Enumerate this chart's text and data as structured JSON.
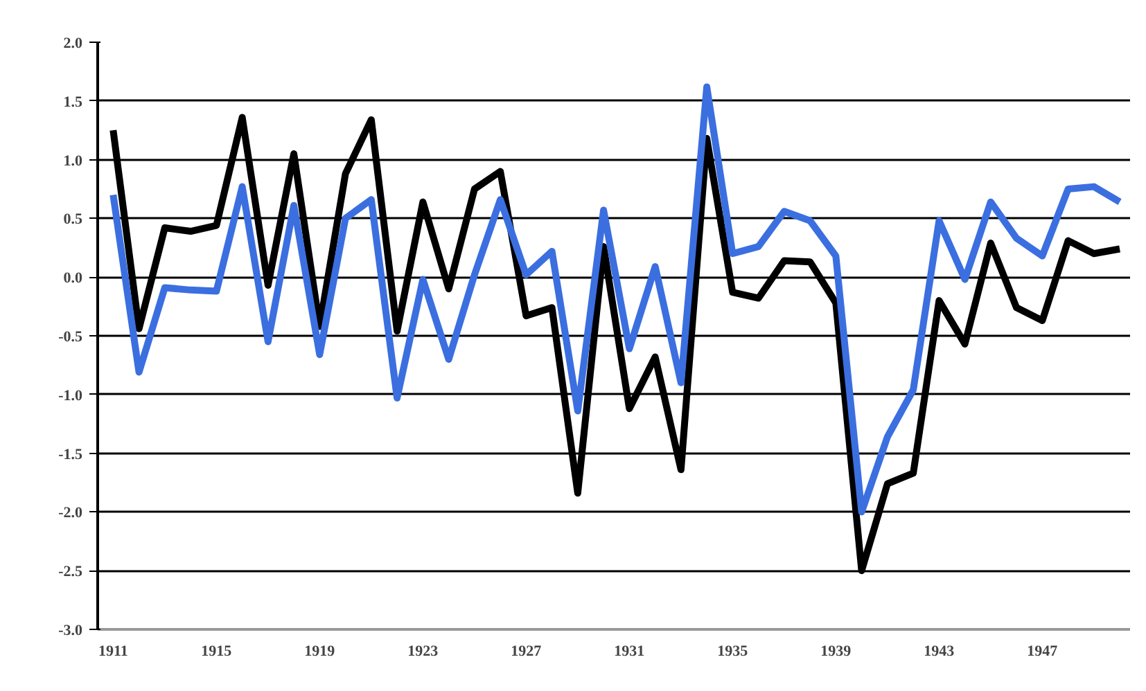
{
  "chart_data": {
    "type": "line",
    "x": [
      1911,
      1912,
      1913,
      1914,
      1915,
      1916,
      1917,
      1918,
      1919,
      1920,
      1921,
      1922,
      1923,
      1924,
      1925,
      1926,
      1927,
      1928,
      1929,
      1930,
      1931,
      1932,
      1933,
      1934,
      1935,
      1936,
      1937,
      1938,
      1939,
      1940,
      1941,
      1942,
      1943,
      1944,
      1945,
      1946,
      1947,
      1948,
      1949,
      1950
    ],
    "series": [
      {
        "color": "#000000",
        "values": [
          1.25,
          -0.44,
          0.42,
          0.39,
          0.44,
          1.36,
          -0.07,
          1.05,
          -0.42,
          0.88,
          1.34,
          -0.46,
          0.64,
          -0.1,
          0.75,
          0.9,
          -0.33,
          -0.26,
          -1.84,
          0.26,
          -1.12,
          -0.68,
          -1.64,
          1.18,
          -0.13,
          -0.18,
          0.14,
          0.13,
          -0.22,
          -2.5,
          -1.76,
          -1.67,
          -0.2,
          -0.57,
          0.29,
          -0.26,
          -0.37,
          0.31,
          0.2,
          0.24
        ]
      },
      {
        "color": "#3b6fe0",
        "values": [
          0.7,
          -0.81,
          -0.09,
          -0.11,
          -0.12,
          0.77,
          -0.55,
          0.61,
          -0.66,
          0.5,
          0.66,
          -1.03,
          -0.02,
          -0.7,
          0.02,
          0.66,
          0.02,
          0.22,
          -1.14,
          0.57,
          -0.61,
          0.09,
          -0.9,
          1.62,
          0.2,
          0.26,
          0.56,
          0.48,
          0.18,
          -2.0,
          -1.36,
          -0.96,
          0.48,
          -0.02,
          0.64,
          0.33,
          0.18,
          0.75,
          0.77,
          0.64
        ]
      }
    ],
    "xlim": [
      1910.4,
      1950.4
    ],
    "xticks": [
      1911,
      1915,
      1919,
      1923,
      1927,
      1931,
      1935,
      1939,
      1943,
      1947
    ],
    "ylim": [
      -3.0,
      2.0
    ],
    "yticks": [
      {
        "value": 2.0,
        "label": "2.0"
      },
      {
        "value": 1.5,
        "label": "1.5"
      },
      {
        "value": 1.0,
        "label": "1.0"
      },
      {
        "value": 0.5,
        "label": "0.5"
      },
      {
        "value": 0.0,
        "label": "0.0"
      },
      {
        "value": -0.5,
        "label": "-0.5"
      },
      {
        "value": -1.0,
        "label": "-1.0"
      },
      {
        "value": -1.5,
        "label": "-1.5"
      },
      {
        "value": -2.0,
        "label": "-2.0"
      },
      {
        "value": -2.5,
        "label": "-2.5"
      },
      {
        "value": -3.0,
        "label": "-3.0"
      }
    ],
    "grid": "y",
    "line_style": "solid",
    "marker": "none"
  }
}
